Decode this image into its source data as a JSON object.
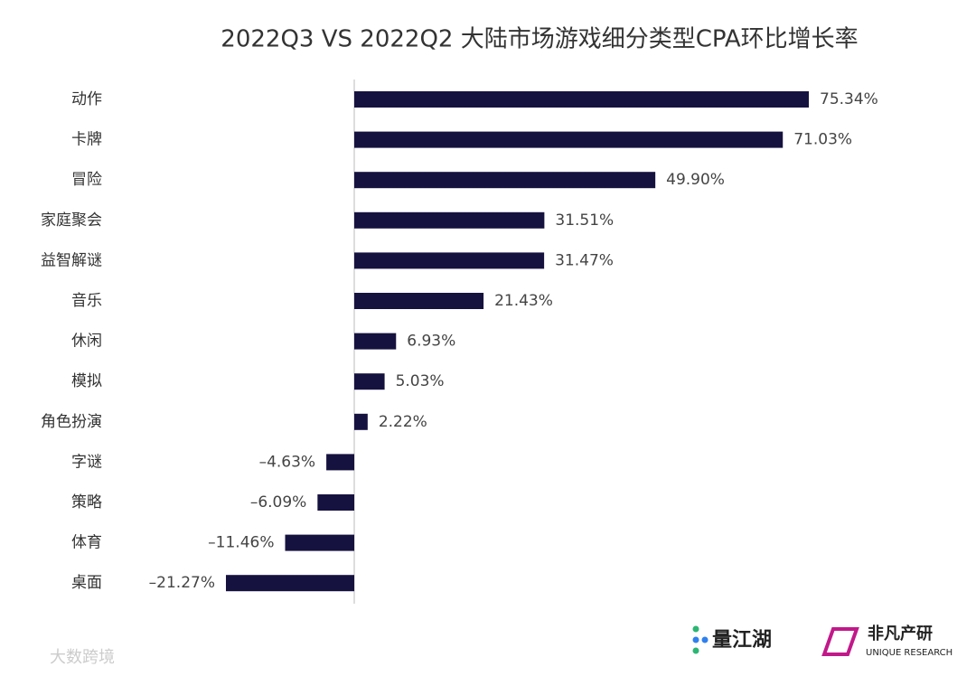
{
  "chart_data": {
    "type": "bar",
    "orientation": "horizontal",
    "title": "2022Q3 VS 2022Q2 大陆市场游戏细分类型CPA环比增长率",
    "categories": [
      "动作",
      "卡牌",
      "冒险",
      "家庭聚会",
      "益智解谜",
      "音乐",
      "休闲",
      "模拟",
      "角色扮演",
      "字谜",
      "策略",
      "体育",
      "桌面"
    ],
    "values": [
      75.34,
      71.03,
      49.9,
      31.51,
      31.47,
      21.43,
      6.93,
      5.03,
      2.22,
      -4.63,
      -6.09,
      -11.46,
      -21.27
    ],
    "value_labels": [
      "75.34%",
      "71.03%",
      "49.90%",
      "31.51%",
      "31.47%",
      "21.43%",
      "6.93%",
      "5.03%",
      "2.22%",
      "–4.63%",
      "–6.09%",
      "–11.46%",
      "–21.27%"
    ],
    "color": "#16123f"
  },
  "logos": {
    "left": "量江湖",
    "right": "非凡产研",
    "right_sub": "UNIQUE RESEARCH"
  },
  "watermark": "大数跨境"
}
